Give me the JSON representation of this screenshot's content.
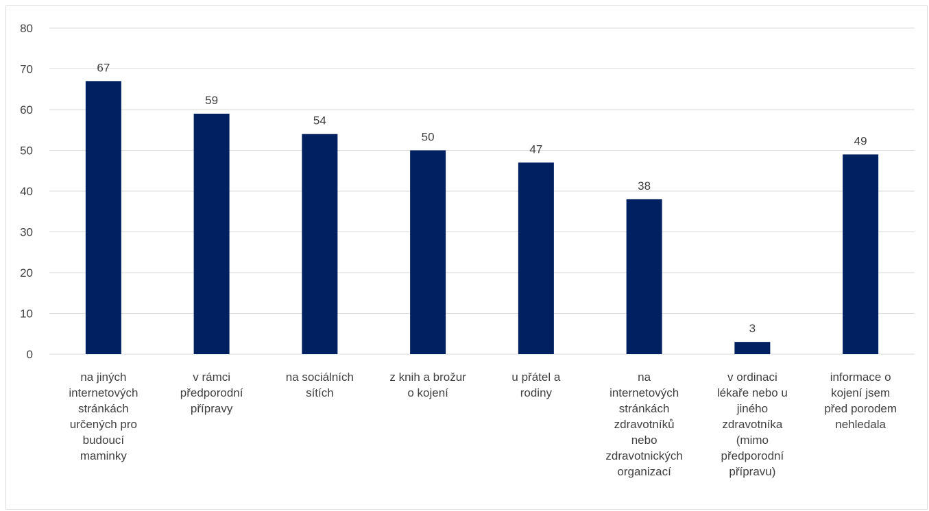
{
  "chart_data": {
    "type": "bar",
    "categories": [
      [
        "na jiných",
        "internetových",
        "stránkách",
        "určených pro",
        "budoucí",
        "maminky"
      ],
      [
        "v rámci",
        "předporodní",
        "přípravy"
      ],
      [
        "na sociálních",
        "sítích"
      ],
      [
        "z knih a brožur",
        "o kojení"
      ],
      [
        "u přátel a",
        "rodiny"
      ],
      [
        "na",
        "internetových",
        "stránkách",
        "zdravotníků",
        "nebo",
        "zdravotnických",
        "organizací"
      ],
      [
        "v ordinaci",
        "lékaře nebo u",
        "jiného",
        "zdravotníka",
        "(mimo",
        "předporodní",
        "přípravu)"
      ],
      [
        "informace o",
        "kojení jsem",
        "před porodem",
        "nehledala"
      ]
    ],
    "values": [
      67,
      59,
      54,
      50,
      47,
      38,
      3,
      49
    ],
    "ylim": [
      0,
      80
    ],
    "yticks": [
      0,
      10,
      20,
      30,
      40,
      50,
      60,
      70,
      80
    ],
    "grid": true,
    "bar_color": "#002060",
    "title": "",
    "xlabel": "",
    "ylabel": ""
  }
}
